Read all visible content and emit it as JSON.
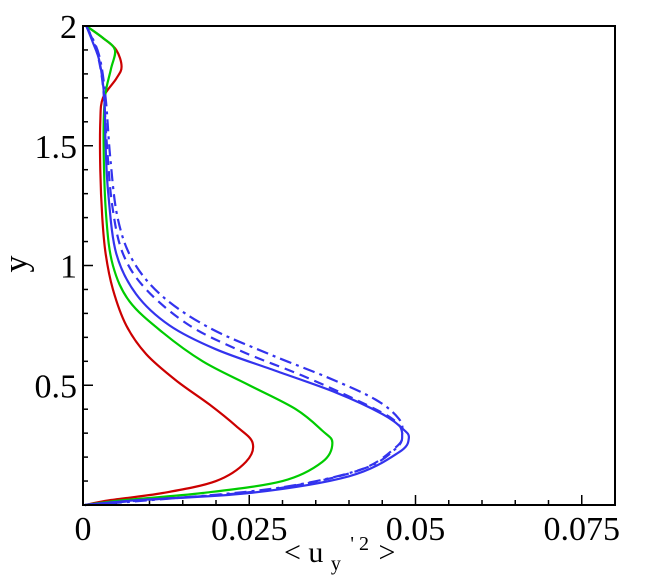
{
  "chart_data": {
    "type": "line",
    "title": "",
    "xlabel": "< u",
    "xlabel_subscript": "y",
    "xlabel_superscript": "' 2",
    "xlabel_close": ">",
    "ylabel": "y",
    "xlim": [
      0,
      0.08
    ],
    "ylim": [
      0,
      2
    ],
    "xticks": [
      0,
      0.025,
      0.05,
      0.075
    ],
    "xtick_labels": [
      "0",
      "0.025",
      "0.05",
      "0.075"
    ],
    "yticks": [
      0.5,
      1,
      1.5,
      2
    ],
    "ytick_labels": [
      "0.5",
      "1",
      "1.5",
      "2"
    ],
    "grid": false,
    "legend": false,
    "series": [
      {
        "color": "#cc0000",
        "dash": "solid",
        "points": [
          [
            0.0003,
            0
          ],
          [
            0.004,
            0.02
          ],
          [
            0.012,
            0.05
          ],
          [
            0.02,
            0.1
          ],
          [
            0.0245,
            0.18
          ],
          [
            0.0255,
            0.26
          ],
          [
            0.023,
            0.33
          ],
          [
            0.019,
            0.42
          ],
          [
            0.014,
            0.52
          ],
          [
            0.0095,
            0.63
          ],
          [
            0.0065,
            0.75
          ],
          [
            0.0045,
            0.9
          ],
          [
            0.0034,
            1.05
          ],
          [
            0.0029,
            1.2
          ],
          [
            0.0026,
            1.4
          ],
          [
            0.0026,
            1.6
          ],
          [
            0.003,
            1.7
          ],
          [
            0.005,
            1.78
          ],
          [
            0.0058,
            1.83
          ],
          [
            0.005,
            1.9
          ],
          [
            0.003,
            1.95
          ],
          [
            0.0005,
            2
          ]
        ]
      },
      {
        "color": "#00cc00",
        "dash": "solid",
        "points": [
          [
            0.0003,
            0
          ],
          [
            0.006,
            0.02
          ],
          [
            0.018,
            0.05
          ],
          [
            0.03,
            0.1
          ],
          [
            0.036,
            0.18
          ],
          [
            0.0375,
            0.26
          ],
          [
            0.036,
            0.31
          ],
          [
            0.032,
            0.4
          ],
          [
            0.025,
            0.5
          ],
          [
            0.018,
            0.6
          ],
          [
            0.012,
            0.72
          ],
          [
            0.007,
            0.85
          ],
          [
            0.0045,
            1.0
          ],
          [
            0.0035,
            1.2
          ],
          [
            0.0031,
            1.5
          ],
          [
            0.0033,
            1.7
          ],
          [
            0.0042,
            1.82
          ],
          [
            0.0048,
            1.9
          ],
          [
            0.003,
            1.95
          ],
          [
            0.0005,
            2
          ]
        ]
      },
      {
        "color": "#3333ee",
        "dash": "solid",
        "points": [
          [
            0.0003,
            0
          ],
          [
            0.008,
            0.02
          ],
          [
            0.025,
            0.05
          ],
          [
            0.04,
            0.12
          ],
          [
            0.0475,
            0.22
          ],
          [
            0.049,
            0.28
          ],
          [
            0.048,
            0.32
          ],
          [
            0.045,
            0.38
          ],
          [
            0.038,
            0.47
          ],
          [
            0.029,
            0.56
          ],
          [
            0.02,
            0.65
          ],
          [
            0.013,
            0.75
          ],
          [
            0.008,
            0.88
          ],
          [
            0.005,
            1.05
          ],
          [
            0.0038,
            1.3
          ],
          [
            0.0034,
            1.5
          ],
          [
            0.0032,
            1.7
          ],
          [
            0.0025,
            1.85
          ],
          [
            0.0015,
            1.93
          ],
          [
            0.0005,
            2
          ]
        ]
      },
      {
        "color": "#3333ee",
        "dash": "dashed",
        "points": [
          [
            0.0003,
            0
          ],
          [
            0.009,
            0.02
          ],
          [
            0.027,
            0.06
          ],
          [
            0.041,
            0.14
          ],
          [
            0.047,
            0.24
          ],
          [
            0.048,
            0.3
          ],
          [
            0.0465,
            0.36
          ],
          [
            0.041,
            0.44
          ],
          [
            0.033,
            0.54
          ],
          [
            0.024,
            0.64
          ],
          [
            0.016,
            0.75
          ],
          [
            0.0095,
            0.9
          ],
          [
            0.006,
            1.05
          ],
          [
            0.0044,
            1.25
          ],
          [
            0.0036,
            1.5
          ],
          [
            0.003,
            1.75
          ],
          [
            0.002,
            1.9
          ],
          [
            0.0005,
            2
          ]
        ]
      },
      {
        "color": "#3333ee",
        "dash": "dashdot",
        "points": [
          [
            0.0003,
            0
          ],
          [
            0.01,
            0.02
          ],
          [
            0.029,
            0.07
          ],
          [
            0.042,
            0.15
          ],
          [
            0.0472,
            0.24
          ],
          [
            0.048,
            0.3
          ],
          [
            0.0475,
            0.36
          ],
          [
            0.044,
            0.44
          ],
          [
            0.037,
            0.53
          ],
          [
            0.028,
            0.63
          ],
          [
            0.019,
            0.74
          ],
          [
            0.012,
            0.87
          ],
          [
            0.0075,
            1.02
          ],
          [
            0.0052,
            1.2
          ],
          [
            0.0041,
            1.45
          ],
          [
            0.0034,
            1.7
          ],
          [
            0.0024,
            1.88
          ],
          [
            0.0005,
            2
          ]
        ]
      }
    ]
  }
}
